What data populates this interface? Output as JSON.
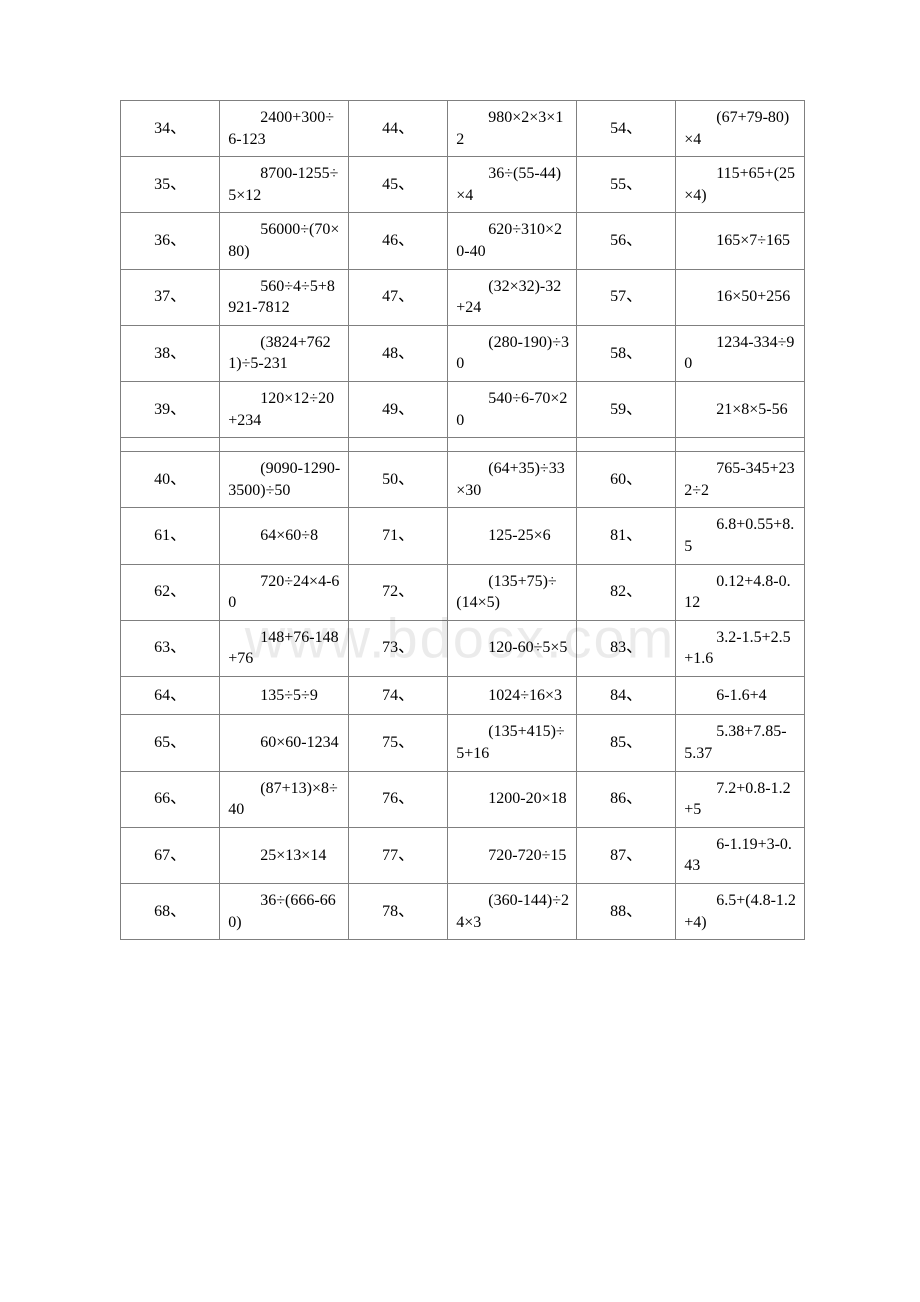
{
  "watermark": "www.bdocx.com",
  "table": {
    "border_color": "#7f7f7f",
    "background_color": "#ffffff",
    "text_color": "#000000",
    "font_size_pt": 12,
    "columns": [
      "num",
      "expr",
      "num",
      "expr",
      "num",
      "expr"
    ],
    "rows": [
      [
        "34、",
        "2400+300÷6-123",
        "44、",
        "980×2×3×12",
        "54、",
        "(67+79-80)×4"
      ],
      [
        "35、",
        "8700-1255÷5×12",
        "45、",
        "36÷(55-44)×4",
        "55、",
        "115+65+(25×4)"
      ],
      [
        "36、",
        "56000÷(70×80)",
        "46、",
        "620÷310×20-40",
        "56、",
        "165×7÷165"
      ],
      [
        "37、",
        "560÷4÷5+8921-7812",
        "47、",
        "(32×32)-32+24",
        "57、",
        "16×50+256"
      ],
      [
        "38、",
        "(3824+7621)÷5-231",
        "48、",
        "(280-190)÷30",
        "58、",
        "1234-334÷90"
      ],
      [
        "39、",
        "120×12÷20+234",
        "49、",
        "540÷6-70×20",
        "59、",
        "21×8×5-56"
      ],
      "spacer",
      [
        "40、",
        "(9090-1290-3500)÷50",
        "50、",
        "(64+35)÷33×30",
        "60、",
        "765-345+232÷2"
      ],
      [
        "61、",
        "64×60÷8",
        "71、",
        "125-25×6",
        "81、",
        "6.8+0.55+8.5"
      ],
      [
        "62、",
        "720÷24×4-60",
        "72、",
        "(135+75)÷(14×5)",
        "82、",
        "0.12+4.8-0.12"
      ],
      [
        "63、",
        "148+76-148+76",
        "73、",
        "120-60÷5×5",
        "83、",
        "3.2-1.5+2.5+1.6"
      ],
      [
        "64、",
        "135÷5÷9",
        "74、",
        "1024÷16×3",
        "84、",
        "6-1.6+4"
      ],
      [
        "65、",
        "60×60-1234",
        "75、",
        "(135+415)÷5+16",
        "85、",
        "5.38+7.85-5.37"
      ],
      [
        "66、",
        "(87+13)×8÷40",
        "76、",
        "1200-20×18",
        "86、",
        "7.2+0.8-1.2+5"
      ],
      [
        "67、",
        "25×13×14",
        "77、",
        "720-720÷15",
        "87、",
        "6-1.19+3-0.43"
      ],
      [
        "68、",
        "36÷(666-660)",
        "78、",
        "(360-144)÷24×3",
        "88、",
        "6.5+(4.8-1.2+4)"
      ]
    ]
  }
}
